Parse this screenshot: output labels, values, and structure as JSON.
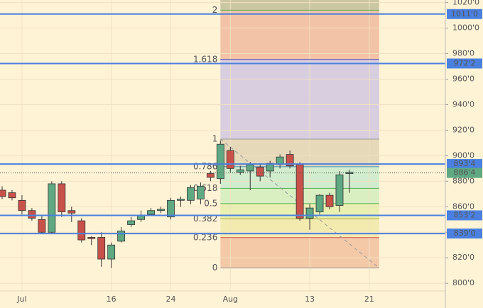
{
  "chart_data": {
    "type": "candlestick",
    "categories": [
      null,
      null,
      "Jul",
      null,
      null,
      null,
      null,
      null,
      null,
      null,
      null,
      "16",
      null,
      null,
      null,
      null,
      null,
      "24",
      null,
      null,
      null,
      null,
      null,
      "Aug",
      null,
      null,
      null,
      null,
      null,
      null,
      null,
      "13",
      null,
      null,
      null,
      null,
      null,
      "21",
      null
    ],
    "open": [
      873,
      871,
      865,
      857,
      850,
      840,
      878,
      857,
      849,
      836,
      836,
      819,
      833,
      846,
      850,
      854,
      857,
      852,
      865,
      865,
      866,
      886,
      882,
      904,
      887,
      888,
      891,
      888,
      893,
      901,
      893,
      851,
      856,
      869,
      861,
      886,
      null,
      null,
      null
    ],
    "high": [
      876,
      873,
      869,
      859,
      853,
      880,
      880,
      860,
      851,
      837,
      840,
      832,
      844,
      852,
      857,
      859,
      860,
      867,
      868,
      877,
      879,
      888,
      912,
      907,
      892,
      895,
      894,
      896,
      901,
      904,
      895,
      862,
      870,
      871,
      888,
      889,
      null,
      null,
      null
    ],
    "low": [
      866,
      865,
      854,
      849,
      839,
      839,
      852,
      848,
      832,
      830,
      813,
      812,
      832,
      844,
      848,
      853,
      855,
      850,
      860,
      862,
      862,
      880,
      878,
      887,
      885,
      873,
      880,
      883,
      890,
      890,
      849,
      842,
      854,
      858,
      856,
      871,
      null,
      null,
      null
    ],
    "close": [
      868,
      867,
      857,
      851,
      840,
      878,
      856,
      855,
      834,
      835,
      819,
      830,
      841,
      849,
      853,
      857,
      858,
      865,
      866,
      875,
      876,
      883,
      909,
      890,
      889,
      893,
      884,
      894,
      899,
      892,
      851,
      859,
      869,
      860,
      885,
      887,
      null,
      null,
      null
    ],
    "up_color": "#5ea882",
    "down_color": "#c8514a",
    "ylim": [
      794,
      1022
    ],
    "yticks": [
      {
        "value": 800,
        "label": "800'0"
      },
      {
        "value": 820,
        "label": "820'0"
      },
      {
        "value": 840,
        "label": "840'0"
      },
      {
        "value": 860,
        "label": "860'0"
      },
      {
        "value": 880,
        "label": "880'0"
      },
      {
        "value": 900,
        "label": "900'0"
      },
      {
        "value": 920,
        "label": "920'0"
      },
      {
        "value": 940,
        "label": "940'0"
      },
      {
        "value": 960,
        "label": "960'0"
      },
      {
        "value": 980,
        "label": "980'0"
      },
      {
        "value": 1000,
        "label": "1000'0"
      },
      {
        "value": 1020,
        "label": "1020'0"
      }
    ],
    "grid": true,
    "hlines": [
      {
        "value": 1011,
        "label": "1011'0"
      },
      {
        "value": 972.25,
        "label": "972'2"
      },
      {
        "value": 893.5,
        "label": "893'4"
      },
      {
        "value": 853.25,
        "label": "853'2"
      },
      {
        "value": 839,
        "label": "839'0"
      }
    ],
    "hline_color": "#4a80e0",
    "last_price": {
      "value": 886.5,
      "label": "886'4"
    },
    "last_price_color": "#5ea882",
    "fib": {
      "low": 812,
      "high": 913,
      "from": 22,
      "to": 38,
      "levels": [
        0,
        0.236,
        0.382,
        0.5,
        0.618,
        0.786,
        1,
        1.618,
        2
      ],
      "level_colors": [
        "#9a9a9a",
        "#d0504a",
        "#a8a830",
        "#4caf50",
        "#4caf50",
        "#3b90b8",
        "#9a9a9a",
        "#4a4ab8",
        "#4caf50"
      ],
      "band_colors": [
        "#f4c9a8",
        "#f3eab0",
        "#e9f0b0",
        "#d9efc2",
        "#d2ecce",
        "#e5d9b9",
        "#d8cee0",
        "#f2c3a6"
      ],
      "top_color": "#cbc7a3"
    }
  }
}
